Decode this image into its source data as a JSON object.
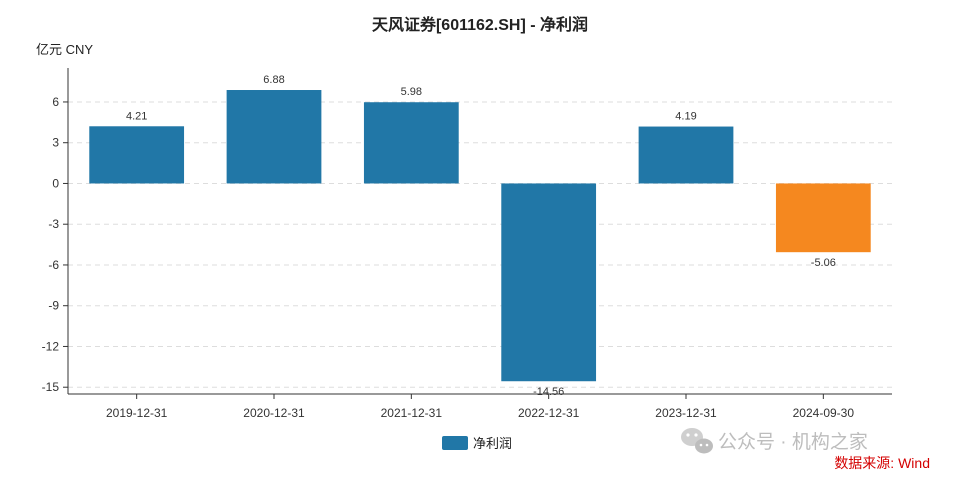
{
  "chart_data": {
    "type": "bar",
    "title": "天风证券[601162.SH] - 净利润",
    "ylabel": "亿元  CNY",
    "categories": [
      "2019-12-31",
      "2020-12-31",
      "2021-12-31",
      "2022-12-31",
      "2023-12-31",
      "2024-09-30"
    ],
    "series": [
      {
        "name": "净利润",
        "values": [
          4.21,
          6.88,
          5.98,
          -14.56,
          4.19,
          -5.06
        ]
      }
    ],
    "value_labels": [
      "4.21",
      "6.88",
      "5.98",
      "-14.56",
      "4.19",
      "-5.06"
    ],
    "bar_colors": [
      "#2177a7",
      "#2177a7",
      "#2177a7",
      "#2177a7",
      "#2177a7",
      "#f5881f"
    ],
    "ylim": [
      -15.5,
      8.5
    ],
    "yticks": [
      6,
      3,
      0,
      -3,
      -6,
      -9,
      -12,
      -15
    ],
    "grid": true,
    "legend_position": "bottom-center"
  },
  "colors": {
    "primary": "#2177a7",
    "highlight": "#f5881f",
    "source_text": "#d40000"
  },
  "watermark": {
    "text": "公众号 · 机构之家",
    "icon": "wechat-icon"
  },
  "source": {
    "text": "数据来源: Wind"
  }
}
